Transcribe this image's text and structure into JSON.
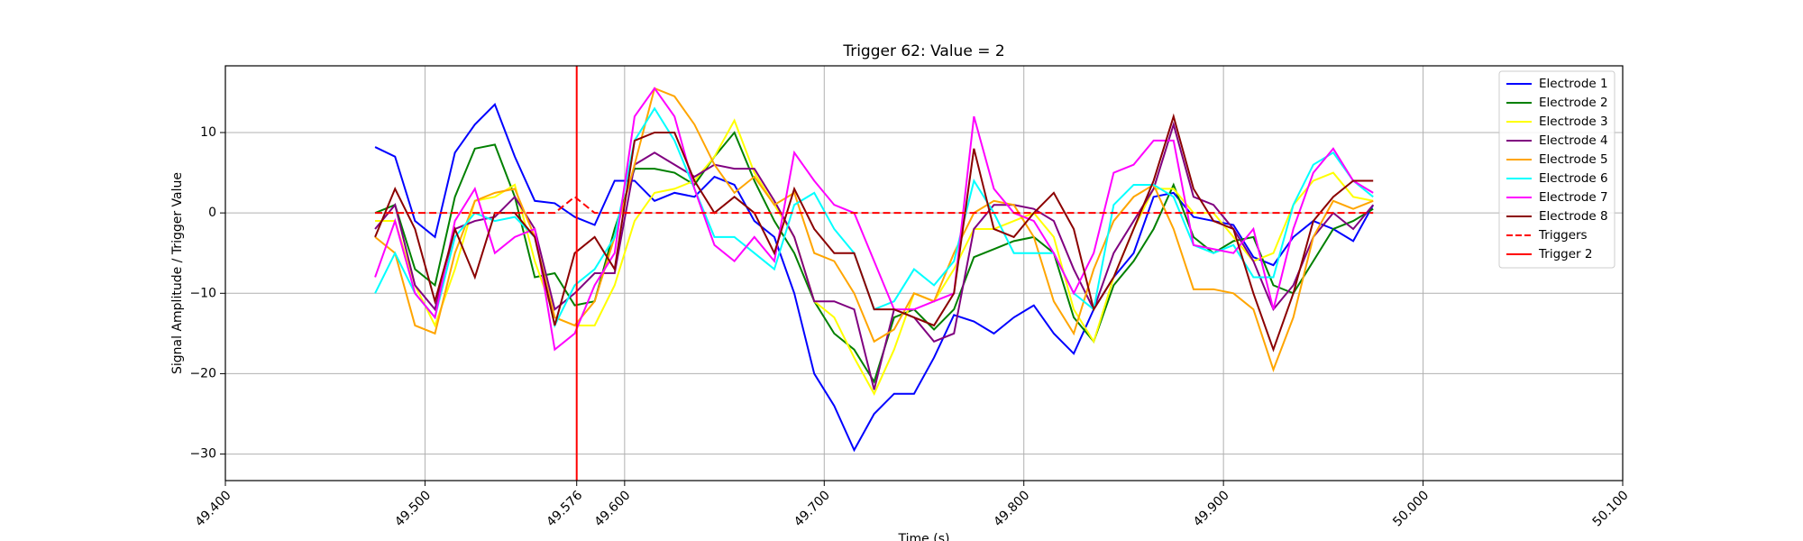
{
  "chart_data": {
    "type": "line",
    "title": "Trigger 62: Value = 2",
    "xlabel": "Time (s)",
    "ylabel": "Signal Amplitude / Trigger Value",
    "xlim": [
      49.4,
      50.1
    ],
    "ylim": [
      -33.3,
      18.3
    ],
    "xticks": [
      {
        "value": 49.4,
        "label": "49.400"
      },
      {
        "value": 49.5,
        "label": "49.500"
      },
      {
        "value": 49.576,
        "label": "49.576"
      },
      {
        "value": 49.6,
        "label": "49.600"
      },
      {
        "value": 49.7,
        "label": "49.700"
      },
      {
        "value": 49.8,
        "label": "49.800"
      },
      {
        "value": 49.9,
        "label": "49.900"
      },
      {
        "value": 50.0,
        "label": "50.000"
      },
      {
        "value": 50.1,
        "label": "50.100"
      }
    ],
    "yticks": [
      {
        "value": -30,
        "label": "−30"
      },
      {
        "value": -20,
        "label": "−20"
      },
      {
        "value": -10,
        "label": "−10"
      },
      0,
      10
    ],
    "grid": true,
    "legend": "upper right",
    "x": [
      49.475,
      49.485,
      49.495,
      49.505,
      49.515,
      49.525,
      49.535,
      49.545,
      49.555,
      49.565,
      49.575,
      49.585,
      49.595,
      49.605,
      49.615,
      49.625,
      49.635,
      49.645,
      49.655,
      49.665,
      49.675,
      49.685,
      49.695,
      49.705,
      49.715,
      49.725,
      49.735,
      49.745,
      49.755,
      49.765,
      49.775,
      49.785,
      49.795,
      49.805,
      49.815,
      49.825,
      49.835,
      49.845,
      49.855,
      49.865,
      49.875,
      49.885,
      49.895,
      49.905,
      49.915,
      49.925,
      49.935,
      49.945,
      49.955,
      49.965,
      49.975
    ],
    "series": [
      {
        "name": "Electrode 1",
        "color": "#0000ff",
        "values": [
          8.2,
          7,
          -1,
          -3,
          7.5,
          11,
          13.5,
          7,
          1.5,
          1.2,
          -0.5,
          -1.5,
          4,
          4,
          1.5,
          2.5,
          2,
          4.5,
          3.5,
          -1,
          -3,
          -10,
          -20,
          -24,
          -29.5,
          -25,
          -22.5,
          -22.5,
          -18,
          -12.7,
          -13.5,
          -15,
          -13,
          -11.5,
          -15,
          -17.5,
          -12,
          -8,
          -5,
          2,
          2.5,
          -0.5,
          -1,
          -1.5,
          -5.5,
          -6.5,
          -3,
          -1,
          -2,
          -3.5,
          1
        ]
      },
      {
        "name": "Electrode 2",
        "color": "#008000",
        "values": [
          0,
          1,
          -7,
          -9,
          2,
          8,
          8.5,
          2,
          -8,
          -7.5,
          -11.5,
          -11,
          -2,
          5.5,
          5.5,
          5,
          3.5,
          7,
          10,
          4,
          -1,
          -5,
          -11,
          -15,
          -17,
          -21,
          -13,
          -12,
          -14.5,
          -12,
          -5.5,
          -4.5,
          -3.5,
          -3,
          -5,
          -13,
          -16,
          -9,
          -6,
          -2,
          3.5,
          -3,
          -5,
          -3.5,
          -3,
          -9,
          -10,
          -6,
          -2,
          -1,
          0.5
        ]
      },
      {
        "name": "Electrode 3",
        "color": "#ffff00",
        "values": [
          -1,
          -1,
          -9,
          -14,
          -7,
          1.5,
          2,
          3.5,
          -6,
          -13,
          -14,
          -14,
          -9,
          -1,
          2.5,
          3,
          4,
          7,
          11.5,
          5,
          1,
          -3,
          -11,
          -13,
          -18,
          -22.5,
          -17,
          -10,
          -11,
          -7,
          -2,
          -2,
          -1,
          0,
          -3,
          -12,
          -16,
          -8,
          -2,
          3,
          3,
          0,
          0,
          -3,
          -6,
          -5,
          1,
          4,
          5,
          2,
          1.5
        ]
      },
      {
        "name": "Electrode 4",
        "color": "#800080",
        "values": [
          -2,
          1,
          -9,
          -12,
          -2,
          -1,
          -0.5,
          2,
          -2,
          -12,
          -10,
          -7.5,
          -7.5,
          6,
          7.5,
          6,
          4.5,
          6,
          5.5,
          5.5,
          1.5,
          -3,
          -11,
          -11,
          -12,
          -22,
          -12,
          -13,
          -16,
          -15,
          -2,
          1,
          1,
          0.5,
          -1,
          -7,
          -12,
          -5,
          -1,
          3,
          11,
          2,
          1,
          -2,
          -6,
          -12,
          -9,
          -3,
          0,
          -2,
          1
        ]
      },
      {
        "name": "Electrode 5",
        "color": "#ffa500",
        "values": [
          -3,
          -5,
          -14,
          -15,
          -5,
          1.5,
          2.5,
          3,
          -3,
          -13,
          -14,
          -11,
          -3,
          6,
          15.5,
          14.5,
          11,
          6,
          2.5,
          4.5,
          1,
          2.5,
          -5,
          -6,
          -10,
          -16,
          -14.5,
          -10,
          -11,
          -5,
          0,
          1.5,
          1,
          -3,
          -11,
          -15,
          -7,
          -1,
          2,
          3.5,
          -2,
          -9.5,
          -9.5,
          -10,
          -12,
          -19.5,
          -13,
          -3,
          1.5,
          0.5,
          1.5
        ]
      },
      {
        "name": "Electrode 6",
        "color": "#00ffff",
        "values": [
          -10,
          -5,
          -10,
          -13,
          -3,
          0,
          -1,
          -0.5,
          -3,
          -14,
          -9,
          -7,
          -3,
          9,
          13,
          9,
          3,
          -3,
          -3,
          -5,
          -7,
          1,
          2.5,
          -2,
          -5,
          -12,
          -11,
          -7,
          -9,
          -6,
          4,
          0,
          -5,
          -5,
          -5,
          -10,
          -12,
          1,
          3.5,
          3.5,
          2,
          -4,
          -5,
          -4,
          -8,
          -8,
          1,
          6,
          7.5,
          4,
          2
        ]
      },
      {
        "name": "Electrode 7",
        "color": "#ff00ff",
        "values": [
          -8,
          -1,
          -10,
          -13,
          -1,
          3,
          -5,
          -3,
          -2,
          -17,
          -15,
          -9,
          -5,
          12,
          15.5,
          12,
          3,
          -4,
          -6,
          -3,
          -6,
          7.5,
          4,
          1,
          0,
          -6,
          -12,
          -12,
          -11,
          -10,
          12,
          3,
          0,
          -1,
          -5,
          -10,
          -5,
          5,
          6,
          9,
          9,
          -4,
          -4.5,
          -5,
          -2,
          -12,
          -2,
          5,
          8,
          4,
          2.5
        ]
      },
      {
        "name": "Electrode 8",
        "color": "#8b0000",
        "values": [
          -3,
          3,
          -2,
          -11,
          -2,
          -8,
          0,
          0,
          -3,
          -14,
          -5,
          -3,
          -7,
          9,
          10,
          10,
          4,
          0,
          2,
          0,
          -5,
          3,
          -2,
          -5,
          -5,
          -12,
          -12,
          -13,
          -14,
          -10,
          8,
          -2,
          -3,
          0,
          2.5,
          -2,
          -12,
          -8,
          -2,
          4,
          12,
          3,
          -1,
          -2,
          -10,
          -17,
          -10,
          -1,
          2,
          4,
          4
        ]
      },
      {
        "name": "Triggers",
        "color": "#ff0000",
        "dashed": true,
        "values": [
          0,
          0,
          0,
          0,
          0,
          0,
          0,
          0,
          0,
          0,
          2,
          0,
          0,
          0,
          0,
          0,
          0,
          0,
          0,
          0,
          0,
          0,
          0,
          0,
          0,
          0,
          0,
          0,
          0,
          0,
          0,
          0,
          0,
          0,
          0,
          0,
          0,
          0,
          0,
          0,
          0,
          0,
          0,
          0,
          0,
          0,
          0,
          0,
          0,
          0,
          0
        ]
      }
    ],
    "vlines": [
      {
        "name": "Trigger 2",
        "color": "#ff0000",
        "x": 49.576
      }
    ]
  }
}
